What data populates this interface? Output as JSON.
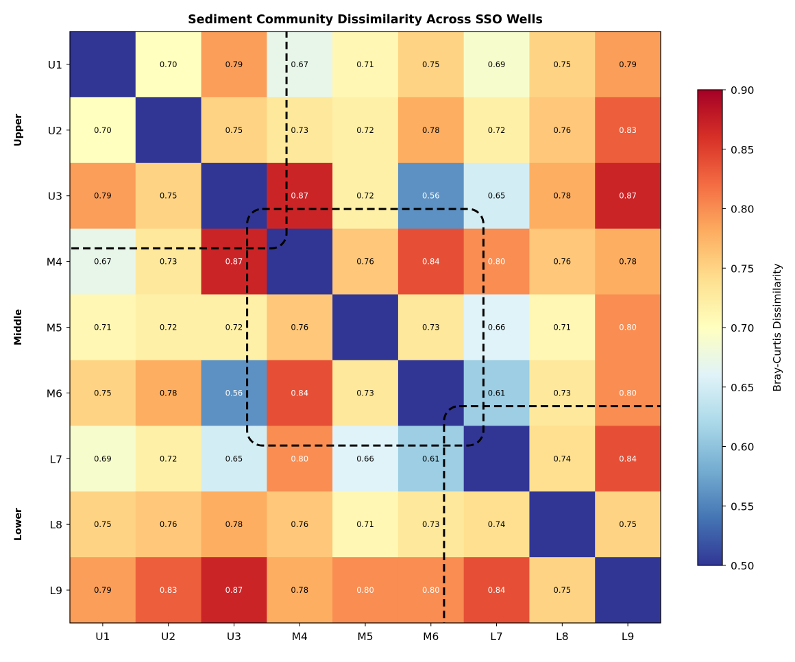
{
  "chart_data": {
    "type": "heatmap",
    "title": "Sediment Community Dissimilarity Across SSO Wells",
    "row_labels": [
      "U1",
      "U2",
      "U3",
      "M4",
      "M5",
      "M6",
      "L7",
      "L8",
      "L9"
    ],
    "col_labels": [
      "U1",
      "U2",
      "U3",
      "M4",
      "M5",
      "M6",
      "L7",
      "L8",
      "L9"
    ],
    "values": [
      [
        0,
        0.7,
        0.79,
        0.67,
        0.71,
        0.75,
        0.69,
        0.75,
        0.79
      ],
      [
        0.7,
        0,
        0.75,
        0.73,
        0.72,
        0.78,
        0.72,
        0.76,
        0.83
      ],
      [
        0.79,
        0.75,
        0,
        0.87,
        0.72,
        0.56,
        0.65,
        0.78,
        0.87
      ],
      [
        0.67,
        0.73,
        0.87,
        0,
        0.76,
        0.84,
        0.8,
        0.76,
        0.78
      ],
      [
        0.71,
        0.72,
        0.72,
        0.76,
        0,
        0.73,
        0.66,
        0.71,
        0.8
      ],
      [
        0.75,
        0.78,
        0.56,
        0.84,
        0.73,
        0,
        0.61,
        0.73,
        0.8
      ],
      [
        0.69,
        0.72,
        0.65,
        0.8,
        0.66,
        0.61,
        0,
        0.74,
        0.84
      ],
      [
        0.75,
        0.76,
        0.78,
        0.76,
        0.71,
        0.73,
        0.74,
        0,
        0.75
      ],
      [
        0.79,
        0.83,
        0.87,
        0.78,
        0.8,
        0.8,
        0.84,
        0.75,
        0
      ]
    ],
    "diagonal_annotated": false,
    "colormap": "RdYlBu_r",
    "vmin": 0.5,
    "vmax": 0.9,
    "colorbar": {
      "label": "Bray-Curtis Dissimilarity",
      "ticks": [
        "0.50",
        "0.55",
        "0.60",
        "0.65",
        "0.70",
        "0.75",
        "0.80",
        "0.85",
        "0.90"
      ]
    },
    "groups": [
      {
        "label": "Upper",
        "start": 0,
        "end": 2
      },
      {
        "label": "Middle",
        "start": 3,
        "end": 5
      },
      {
        "label": "Lower",
        "start": 6,
        "end": 8
      }
    ],
    "group_box_style": "dashed black rounded"
  }
}
